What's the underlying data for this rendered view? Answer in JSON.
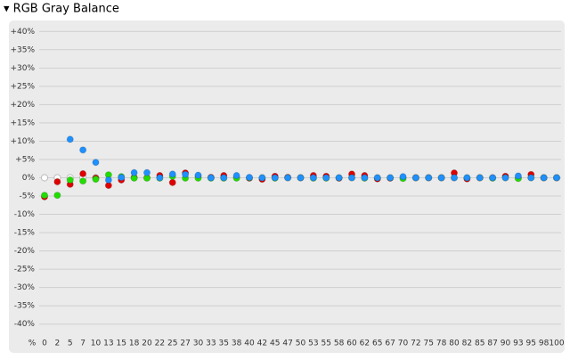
{
  "chart_data": {
    "type": "scatter",
    "title": "▾ RGB Gray Balance",
    "x_label": "%",
    "categories": [
      "0",
      "2",
      "5",
      "7",
      "10",
      "13",
      "15",
      "18",
      "20",
      "22",
      "25",
      "27",
      "30",
      "33",
      "35",
      "38",
      "40",
      "42",
      "45",
      "47",
      "50",
      "53",
      "55",
      "58",
      "60",
      "62",
      "65",
      "67",
      "70",
      "72",
      "75",
      "78",
      "80",
      "82",
      "85",
      "87",
      "90",
      "93",
      "95",
      "98",
      "100"
    ],
    "series": [
      {
        "color": "#bbbbbb",
        "hollow": true,
        "values": [
          0,
          0,
          0,
          0,
          0,
          null,
          null,
          null,
          null,
          null,
          null,
          null,
          null,
          null,
          null,
          null,
          null,
          null,
          null,
          null,
          null,
          null,
          null,
          null,
          null,
          null,
          null,
          null,
          null,
          null,
          null,
          null,
          null,
          null,
          null,
          null,
          null,
          null,
          null,
          null,
          null
        ]
      },
      {
        "color": "#e00000",
        "values": [
          -5.2,
          -1.1,
          -1.8,
          1.1,
          -0.1,
          -2.1,
          -0.6,
          0.1,
          0,
          0.6,
          -1.3,
          1.3,
          0.4,
          0.1,
          0.6,
          0.1,
          -0.1,
          -0.4,
          0.4,
          0.1,
          0,
          0.6,
          0.4,
          -0.1,
          1.0,
          0.6,
          -0.3,
          -0.1,
          0,
          0,
          0,
          0,
          1.3,
          -0.3,
          0,
          0,
          0.4,
          0,
          0.9,
          0,
          0
        ]
      },
      {
        "color": "#22dd00",
        "values": [
          -4.8,
          -4.8,
          -0.6,
          -0.9,
          -0.4,
          0.8,
          0.3,
          -0.1,
          -0.1,
          -0.1,
          0.4,
          -0.1,
          -0.1,
          -0.1,
          -0.1,
          -0.1,
          0,
          0,
          -0.1,
          0,
          0,
          -0.1,
          -0.1,
          0,
          0,
          -0.1,
          0,
          0,
          -0.2,
          0,
          0,
          0,
          0,
          0,
          0,
          -0.1,
          0,
          -0.2,
          0,
          0,
          0
        ]
      },
      {
        "color": "#1e90ff",
        "values": [
          null,
          null,
          10.5,
          7.6,
          4.2,
          -0.6,
          0.1,
          1.4,
          1.4,
          0,
          1.0,
          0.9,
          0.7,
          0,
          0,
          0.6,
          0.1,
          0,
          0,
          0,
          0,
          0,
          0,
          0,
          0,
          0,
          0,
          0,
          0.3,
          0,
          0,
          0,
          0,
          0,
          0,
          0,
          0,
          0.5,
          0,
          0,
          0
        ]
      }
    ],
    "ylim": [
      -42.5,
      42.5
    ],
    "yticks": [
      {
        "value": 40,
        "label": "+40%"
      },
      {
        "value": 35,
        "label": "+35%"
      },
      {
        "value": 30,
        "label": "+30%"
      },
      {
        "value": 25,
        "label": "+25%"
      },
      {
        "value": 20,
        "label": "+20%"
      },
      {
        "value": 15,
        "label": "+15%"
      },
      {
        "value": 10,
        "label": "+10%"
      },
      {
        "value": 5,
        "label": "+5%"
      },
      {
        "value": 0,
        "label": "0%"
      },
      {
        "value": -5,
        "label": "-5%"
      },
      {
        "value": -10,
        "label": "-10%"
      },
      {
        "value": -15,
        "label": "-15%"
      },
      {
        "value": -20,
        "label": "-20%"
      },
      {
        "value": -25,
        "label": "-25%"
      },
      {
        "value": -30,
        "label": "-30%"
      },
      {
        "value": -35,
        "label": "-35%"
      },
      {
        "value": -40,
        "label": "-40%"
      }
    ],
    "grid": true
  }
}
